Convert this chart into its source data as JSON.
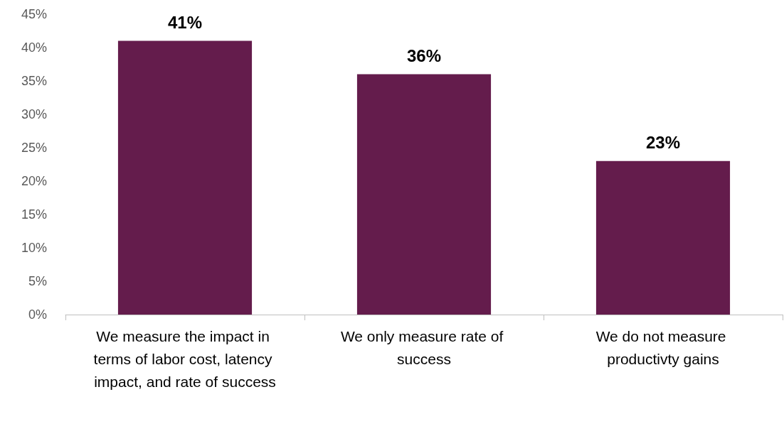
{
  "chart_data": {
    "type": "bar",
    "categories": [
      "We measure the impact in terms of labor cost, latency impact, and rate of success",
      "We only measure rate of success",
      "We do not measure productivty gains"
    ],
    "values": [
      41,
      36,
      23
    ],
    "value_labels": [
      "41%",
      "36%",
      "23%"
    ],
    "color": "#641c4c",
    "ylim": [
      0,
      45
    ],
    "yticks": [
      {
        "value": 0,
        "label": "0%"
      },
      {
        "value": 5,
        "label": "5%"
      },
      {
        "value": 10,
        "label": "10%"
      },
      {
        "value": 15,
        "label": "15%"
      },
      {
        "value": 20,
        "label": "20%"
      },
      {
        "value": 25,
        "label": "25%"
      },
      {
        "value": 30,
        "label": "30%"
      },
      {
        "value": 35,
        "label": "35%"
      },
      {
        "value": 40,
        "label": "40%"
      },
      {
        "value": 45,
        "label": "45%"
      }
    ],
    "grid": false
  }
}
